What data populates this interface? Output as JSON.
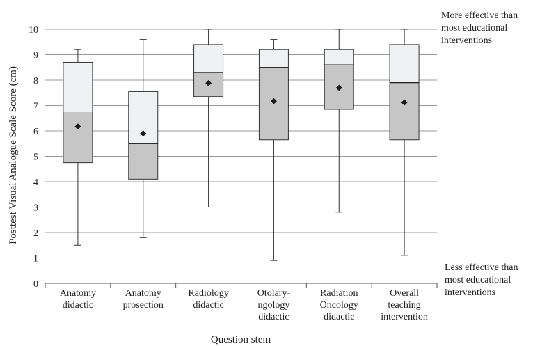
{
  "chart_data": {
    "type": "boxplot",
    "title": "",
    "xlabel": "Question stem",
    "ylabel": "Posttest Visual Analogue Scale Score (cm)",
    "ylim": [
      0,
      10
    ],
    "yticks": [
      0,
      1,
      2,
      3,
      4,
      5,
      6,
      7,
      8,
      9,
      10
    ],
    "grid": true,
    "categories": [
      [
        "Anatomy",
        "didactic"
      ],
      [
        "Anatomy",
        "prosection"
      ],
      [
        "Radiology",
        "didactic"
      ],
      [
        "Otolary-",
        "ngology",
        "didactic"
      ],
      [
        "Radiation",
        "Oncology",
        "didactic"
      ],
      [
        "Overall",
        "teaching",
        "intervention"
      ]
    ],
    "boxes": [
      {
        "min": 1.5,
        "q1": 4.75,
        "median": 6.7,
        "q3": 8.7,
        "max": 9.2,
        "mean": 6.17
      },
      {
        "min": 1.8,
        "q1": 4.1,
        "median": 5.5,
        "q3": 7.55,
        "max": 9.6,
        "mean": 5.9
      },
      {
        "min": 3.0,
        "q1": 7.35,
        "median": 8.3,
        "q3": 9.4,
        "max": 10.0,
        "mean": 7.88
      },
      {
        "min": 0.9,
        "q1": 5.65,
        "median": 8.5,
        "q3": 9.2,
        "max": 9.6,
        "mean": 7.17
      },
      {
        "min": 2.8,
        "q1": 6.85,
        "median": 8.6,
        "q3": 9.2,
        "max": 10.0,
        "mean": 7.7
      },
      {
        "min": 1.1,
        "q1": 5.65,
        "median": 7.9,
        "q3": 9.4,
        "max": 10.0,
        "mean": 7.12
      }
    ],
    "annotations": {
      "top": [
        "More effective than",
        "most educational",
        "interventions"
      ],
      "bottom": [
        "Less effective than",
        "most educational",
        "interventions"
      ]
    },
    "colors": {
      "upper_box": "#f0f1f3",
      "lower_box": "#c6c6c6",
      "grid": "#999999",
      "mean_marker": "#1a1a1a"
    }
  }
}
